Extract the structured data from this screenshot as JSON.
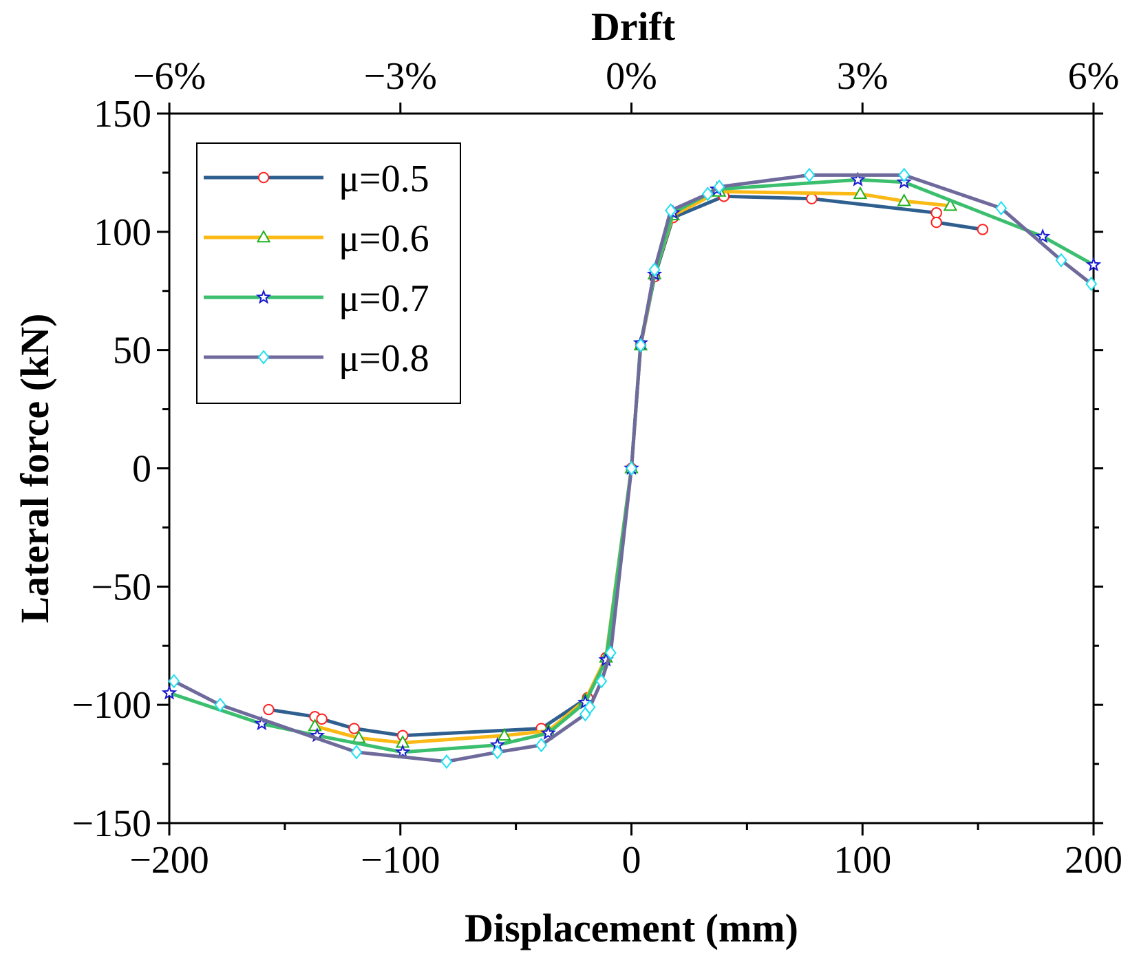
{
  "chart_data": {
    "type": "line",
    "title": "",
    "xlabel": "Displacement (mm)",
    "ylabel": "Lateral force (kN)",
    "top_xlabel": "Drift",
    "xlim": [
      -200,
      200
    ],
    "ylim": [
      -150,
      150
    ],
    "x_ticks": [
      -200,
      -100,
      0,
      100,
      200
    ],
    "x_tick_labels": [
      "−200",
      "−100",
      "0",
      "100",
      "200"
    ],
    "y_ticks": [
      -150,
      -100,
      -50,
      0,
      50,
      100,
      150
    ],
    "y_tick_labels": [
      "−150",
      "−100",
      "−50",
      "0",
      "50",
      "100",
      "150"
    ],
    "top_ticks": [
      -6,
      -3,
      0,
      3,
      6
    ],
    "top_tick_labels": [
      "−6%",
      "−3%",
      "0%",
      "3%",
      "6%"
    ],
    "top_axis_mm_per_percent": 33.33,
    "grid": false,
    "legend_position": "top-left",
    "series": [
      {
        "name": "μ=0.5",
        "color": "#2e5f8e",
        "marker": "circle",
        "marker_color": "#ff2020",
        "x": [
          -157,
          -137,
          -134,
          -120,
          -99,
          -39,
          -19,
          -11,
          0,
          4,
          10,
          18,
          40,
          78,
          132,
          132,
          152
        ],
        "y": [
          -102,
          -105,
          -106,
          -110,
          -113,
          -110,
          -97,
          -80,
          0,
          52,
          81,
          106,
          115,
          114,
          108,
          104,
          101
        ]
      },
      {
        "name": "μ=0.6",
        "color": "#fbb915",
        "marker": "triangle",
        "marker_color": "#20b020",
        "x": [
          -137,
          -118,
          -99,
          -55,
          -36,
          -20,
          -11,
          0,
          4,
          10,
          18,
          38,
          99,
          118,
          138
        ],
        "y": [
          -109,
          -114,
          -116,
          -113,
          -111,
          -98,
          -80,
          0,
          52,
          82,
          107,
          117,
          116,
          113,
          111
        ]
      },
      {
        "name": "μ=0.7",
        "color": "#3bbf6f",
        "marker": "star",
        "marker_color": "#1a1ad0",
        "x": [
          -200,
          -160,
          -136,
          -99,
          -58,
          -36,
          -20,
          -11,
          0,
          4,
          10,
          18,
          37,
          98,
          118,
          178,
          200
        ],
        "y": [
          -95,
          -108,
          -113,
          -120,
          -117,
          -112,
          -99,
          -81,
          0,
          53,
          82,
          108,
          118,
          122,
          121,
          98,
          86
        ]
      },
      {
        "name": "μ=0.8",
        "color": "#6e6a9c",
        "marker": "diamond",
        "marker_color": "#20e0f0",
        "x": [
          -198,
          -178,
          -119,
          -80,
          -58,
          -39,
          -20,
          -18,
          -13,
          -9,
          0,
          4,
          10,
          17,
          33,
          38,
          77,
          118,
          160,
          186,
          199
        ],
        "y": [
          -90,
          -100,
          -120,
          -124,
          -120,
          -117,
          -104,
          -101,
          -90,
          -78,
          0,
          52,
          84,
          109,
          116,
          119,
          124,
          124,
          110,
          88,
          78
        ]
      }
    ]
  }
}
